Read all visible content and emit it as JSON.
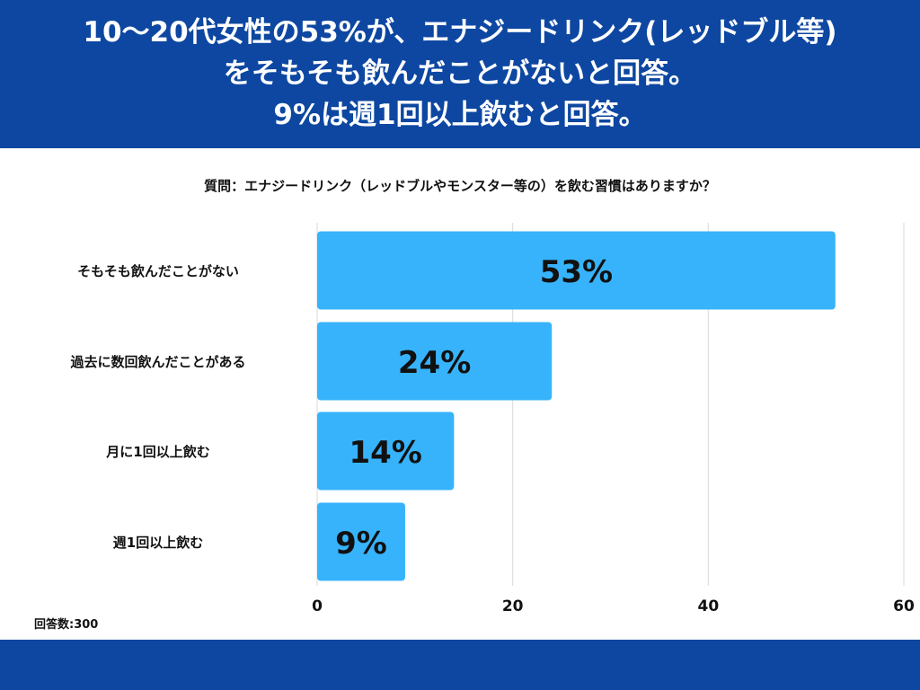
{
  "header": {
    "lines": [
      "10〜20代女性の53%が、エナジードリンク(レッドブル等)",
      "をそもそも飲んだことがないと回答。",
      "9%は週1回以上飲むと回答。"
    ]
  },
  "chart_data": {
    "type": "bar",
    "orientation": "horizontal",
    "title": "質問：エナジードリンク（レッドブルやモンスター等の）を飲む習慣はありますか？",
    "categories": [
      "そもそも飲んだことがない",
      "過去に数回飲んだことがある",
      "月に1回以上飲む",
      "週1回以上飲む"
    ],
    "values": [
      53,
      24,
      14,
      9
    ],
    "data_labels": [
      "53%",
      "24%",
      "14%",
      "9%"
    ],
    "xlim": [
      0,
      60
    ],
    "xticks": [
      0,
      20,
      40,
      60
    ],
    "xtick_labels": [
      "0",
      "20",
      "40",
      "60"
    ],
    "grid": true,
    "bar_color": "#37b3fb",
    "grid_color": "#d9d9d9"
  },
  "footer": {
    "respondents": "回答数:300"
  },
  "colors": {
    "band": "#0d47a1"
  }
}
